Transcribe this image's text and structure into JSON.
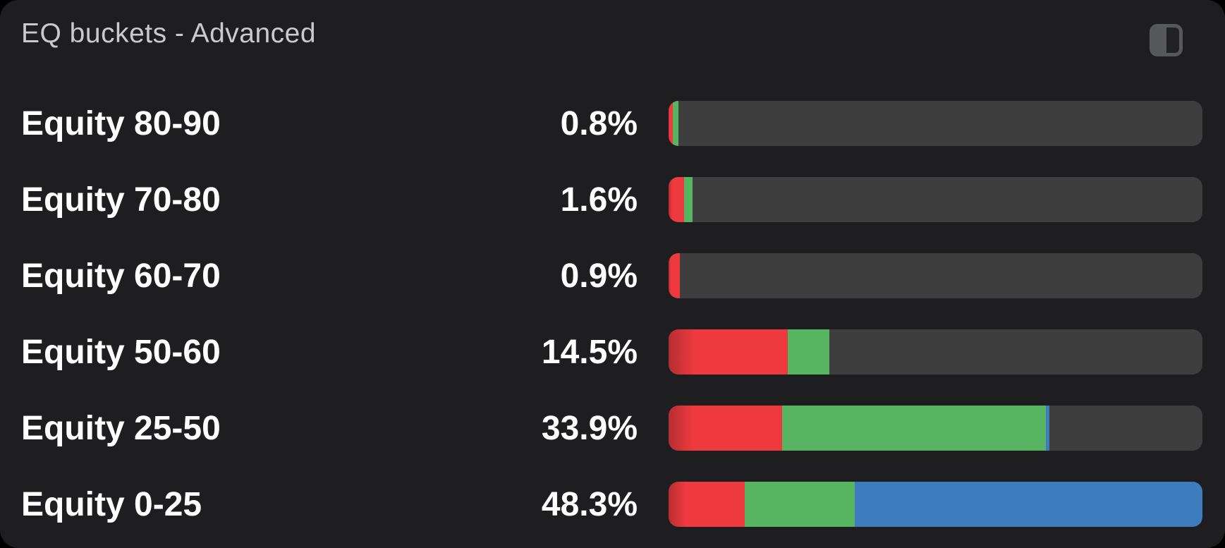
{
  "panel": {
    "title": "EQ buckets - Advanced",
    "header_icon": "split-panel-icon"
  },
  "colors": {
    "panel_bg": "#1e1e20",
    "track": "#3e3e3e",
    "red": "#ee3a3e",
    "red_dark": "#b52e32",
    "green": "#57b561",
    "blue": "#3d7dbd",
    "title_text": "#c9cacf",
    "label_text": "#ffffff"
  },
  "chart_data": {
    "type": "bar",
    "orientation": "horizontal",
    "stacked": true,
    "title": "EQ buckets - Advanced",
    "categories": [
      "Equity 80-90",
      "Equity 70-80",
      "Equity 60-70",
      "Equity 50-60",
      "Equity 25-50",
      "Equity 0-25"
    ],
    "values_percent": [
      0.8,
      1.6,
      0.9,
      14.5,
      33.9,
      48.3
    ],
    "rows": [
      {
        "label": "Equity 80-90",
        "value": "0.8%",
        "segments": [
          {
            "color": "red",
            "percent": 0.8
          },
          {
            "color": "green",
            "percent": 1.0
          }
        ]
      },
      {
        "label": "Equity 70-80",
        "value": "1.6%",
        "segments": [
          {
            "color": "red",
            "percent": 2.9
          },
          {
            "color": "green",
            "percent": 1.6
          }
        ]
      },
      {
        "label": "Equity 60-70",
        "value": "0.9%",
        "segments": [
          {
            "color": "red",
            "percent": 2.1
          }
        ]
      },
      {
        "label": "Equity 50-60",
        "value": "14.5%",
        "segments": [
          {
            "color": "red",
            "percent": 22.3
          },
          {
            "color": "green",
            "percent": 7.8
          }
        ]
      },
      {
        "label": "Equity 25-50",
        "value": "33.9%",
        "segments": [
          {
            "color": "red",
            "percent": 21.3
          },
          {
            "color": "green",
            "percent": 49.4
          },
          {
            "color": "blue",
            "percent": 0.7
          }
        ]
      },
      {
        "label": "Equity 0-25",
        "value": "48.3%",
        "segments": [
          {
            "color": "red",
            "percent": 14.3
          },
          {
            "color": "green",
            "percent": 20.6
          },
          {
            "color": "blue",
            "percent": 65.1
          }
        ]
      }
    ],
    "layout": {
      "legend": "none",
      "axes": "none",
      "track_visible": true
    }
  }
}
